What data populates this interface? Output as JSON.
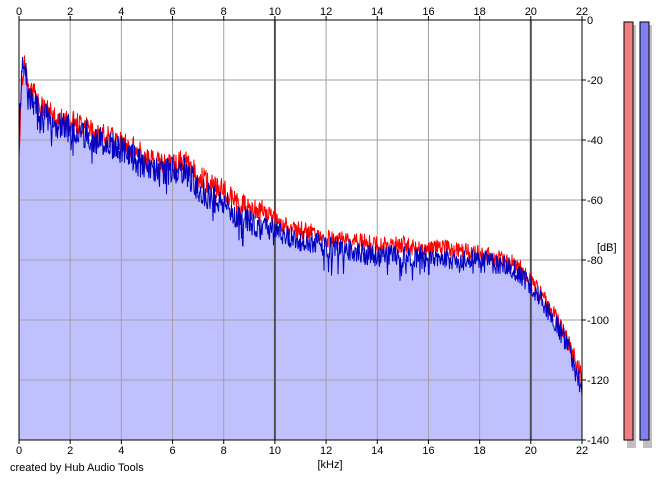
{
  "chart_data": {
    "type": "area",
    "xlabel": "[kHz]",
    "ylabel": "[dB]",
    "xlim": [
      0,
      22
    ],
    "ylim": [
      -140,
      0
    ],
    "x_ticks": [
      0,
      2,
      4,
      6,
      8,
      10,
      12,
      14,
      16,
      18,
      20,
      22
    ],
    "y_ticks": [
      0,
      -20,
      -40,
      -60,
      -80,
      -100,
      -120,
      -140
    ],
    "grid": true,
    "colors": {
      "fill": "#c0c0ff",
      "left_channel": "#ff0000",
      "right_channel": "#0000c0",
      "meter_left": "#f08080",
      "meter_right": "#8080f0"
    },
    "series": [
      {
        "x": [
          0,
          0.1,
          0.2,
          0.4,
          0.6,
          0.8,
          1,
          1.5,
          2,
          2.5,
          3,
          3.5,
          4,
          4.5,
          5,
          5.5,
          6,
          6.5,
          7,
          7.5,
          8,
          8.5,
          9,
          9.5,
          10,
          10.5,
          11,
          11.5,
          12,
          12.5,
          13,
          13.5,
          14,
          14.5,
          15,
          15.5,
          16,
          16.5,
          17,
          17.5,
          18,
          18.5,
          19,
          19.5,
          20,
          20.5,
          21,
          21.5,
          22
        ],
        "values": [
          -45,
          -20,
          -15,
          -24,
          -25,
          -28,
          -30,
          -33,
          -34,
          -35,
          -38,
          -39,
          -41,
          -43,
          -46,
          -48,
          -48,
          -47,
          -52,
          -55,
          -57,
          -61,
          -63,
          -64,
          -66,
          -69,
          -70,
          -71,
          -73,
          -73,
          -74,
          -74,
          -75,
          -75,
          -75,
          -76,
          -76,
          -76,
          -77,
          -77,
          -78,
          -79,
          -80,
          -82,
          -87,
          -93,
          -99,
          -108,
          -119
        ]
      },
      {
        "x": [
          0,
          0.1,
          0.2,
          0.4,
          0.6,
          0.8,
          1,
          1.5,
          2,
          2.5,
          3,
          3.5,
          4,
          4.5,
          5,
          5.5,
          6,
          6.5,
          7,
          7.5,
          8,
          8.5,
          9,
          9.5,
          10,
          10.5,
          11,
          11.5,
          12,
          12.5,
          13,
          13.5,
          14,
          14.5,
          15,
          15.5,
          16,
          16.5,
          17,
          17.5,
          18,
          18.5,
          19,
          19.5,
          20,
          20.5,
          21,
          21.5,
          22
        ],
        "values": [
          -40,
          -18,
          -14,
          -26,
          -27,
          -30,
          -32,
          -35,
          -36,
          -37,
          -40,
          -41,
          -43,
          -46,
          -50,
          -51,
          -50,
          -50,
          -56,
          -59,
          -61,
          -65,
          -67,
          -69,
          -70,
          -72,
          -73,
          -74,
          -76,
          -76,
          -77,
          -78,
          -79,
          -78,
          -79,
          -79,
          -79,
          -79,
          -80,
          -80,
          -80,
          -81,
          -82,
          -84,
          -88,
          -95,
          -101,
          -110,
          -123
        ]
      }
    ]
  },
  "meters": {
    "left_level": 1.0,
    "right_level": 1.0
  },
  "credit": "created by Hub Audio Tools"
}
